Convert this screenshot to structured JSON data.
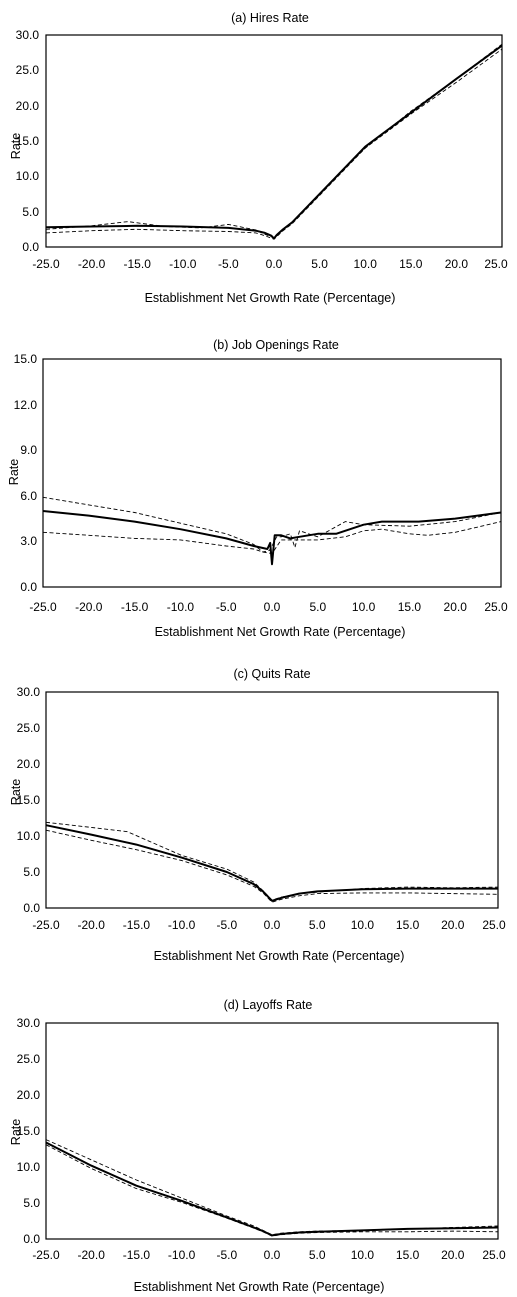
{
  "chart_data": [
    {
      "type": "line",
      "title": "(a) Hires Rate",
      "xlabel": "Establishment Net Growth Rate (Percentage)",
      "ylabel": "Rate",
      "xlim": [
        -25,
        25
      ],
      "ylim": [
        0,
        30
      ],
      "xticks": [
        "-25.0",
        "-20.0",
        "-15.0",
        "-10.0",
        "-5.0",
        "0.0",
        "5.0",
        "10.0",
        "15.0",
        "20.0",
        "25.0"
      ],
      "yticks": [
        "0.0",
        "5.0",
        "10.0",
        "15.0",
        "20.0",
        "25.0",
        "30.0"
      ],
      "series": [
        {
          "style": "solid",
          "x": [
            -25,
            -20,
            -15,
            -10,
            -5,
            -2,
            -1,
            -0.3,
            0,
            0.3,
            1,
            2,
            5,
            10,
            15,
            20,
            25
          ],
          "y": [
            2.8,
            2.9,
            3.0,
            2.9,
            2.7,
            2.3,
            2.0,
            1.6,
            1.2,
            1.7,
            2.5,
            3.5,
            7.5,
            14.2,
            19.0,
            23.8,
            28.5
          ]
        },
        {
          "style": "dash",
          "x": [
            -25,
            -20,
            -16,
            -12,
            -8,
            -5,
            -2,
            -1,
            0,
            1,
            2,
            5,
            10,
            15,
            20,
            25
          ],
          "y": [
            2.5,
            3.0,
            3.6,
            2.9,
            2.7,
            3.2,
            2.4,
            1.8,
            1.3,
            2.4,
            3.5,
            7.5,
            14.0,
            18.8,
            23.3,
            28.0
          ]
        },
        {
          "style": "dash",
          "x": [
            -25,
            -20,
            -15,
            -10,
            -5,
            -2,
            -1,
            0,
            1,
            2,
            5,
            10,
            15,
            20,
            25
          ],
          "y": [
            2.0,
            2.3,
            2.5,
            2.3,
            2.2,
            2.0,
            1.6,
            1.1,
            2.3,
            3.3,
            7.3,
            14.0,
            19.2,
            23.8,
            28.7
          ]
        }
      ]
    },
    {
      "type": "line",
      "title": "(b) Job Openings Rate",
      "xlabel": "Establishment Net Growth Rate (Percentage)",
      "ylabel": "Rate",
      "xlim": [
        -25,
        25
      ],
      "ylim": [
        0,
        15
      ],
      "xticks": [
        "-25.0",
        "-20.0",
        "-15.0",
        "-10.0",
        "-5.0",
        "0.0",
        "5.0",
        "10.0",
        "15.0",
        "20.0",
        "25.0"
      ],
      "yticks": [
        "0.0",
        "3.0",
        "6.0",
        "9.0",
        "12.0",
        "15.0"
      ],
      "series": [
        {
          "style": "solid",
          "x": [
            -25,
            -20,
            -15,
            -10,
            -5,
            -2,
            -0.5,
            -0.2,
            0,
            0.3,
            1,
            2,
            3,
            5,
            7,
            10,
            12,
            16,
            20,
            25
          ],
          "y": [
            5.0,
            4.7,
            4.3,
            3.8,
            3.2,
            2.7,
            2.5,
            2.9,
            1.5,
            3.4,
            3.4,
            3.2,
            3.3,
            3.5,
            3.5,
            4.1,
            4.3,
            4.3,
            4.5,
            4.9
          ]
        },
        {
          "style": "dash",
          "x": [
            -25,
            -20,
            -15,
            -10,
            -5,
            -2,
            -1,
            -0.3,
            0,
            0.5,
            1,
            2,
            2.5,
            3,
            5,
            8,
            10,
            15,
            20,
            25
          ],
          "y": [
            5.9,
            5.4,
            4.9,
            4.2,
            3.5,
            2.8,
            2.3,
            2.4,
            2.7,
            3.3,
            3.3,
            3.5,
            2.6,
            3.7,
            3.3,
            4.3,
            4.1,
            4.0,
            4.3,
            4.9
          ]
        },
        {
          "style": "dash",
          "x": [
            -25,
            -20,
            -15,
            -10,
            -5,
            -2,
            -1,
            0,
            1,
            3,
            5,
            8,
            10,
            12,
            15,
            17,
            20,
            25
          ],
          "y": [
            3.6,
            3.4,
            3.2,
            3.1,
            2.7,
            2.5,
            2.3,
            2.2,
            3.1,
            3.1,
            3.1,
            3.3,
            3.7,
            3.8,
            3.5,
            3.4,
            3.6,
            4.3
          ]
        }
      ]
    },
    {
      "type": "line",
      "title": "(c) Quits Rate",
      "xlabel": "Establishment Net Growth Rate (Percentage)",
      "ylabel": "Rate",
      "xlim": [
        -25,
        25
      ],
      "ylim": [
        0,
        30
      ],
      "xticks": [
        "-25.0",
        "-20.0",
        "-15.0",
        "-10.0",
        "-5.0",
        "0.0",
        "5.0",
        "10.0",
        "15.0",
        "20.0",
        "25.0"
      ],
      "yticks": [
        "0.0",
        "5.0",
        "10.0",
        "15.0",
        "20.0",
        "25.0",
        "30.0"
      ],
      "series": [
        {
          "style": "solid",
          "x": [
            -25,
            -20,
            -15,
            -10,
            -5,
            -2,
            -1,
            0,
            1,
            3,
            5,
            10,
            15,
            20,
            25
          ],
          "y": [
            11.5,
            10.2,
            8.8,
            7.0,
            5.0,
            3.3,
            2.3,
            1.0,
            1.4,
            2.0,
            2.3,
            2.6,
            2.7,
            2.7,
            2.7
          ]
        },
        {
          "style": "dash",
          "x": [
            -25,
            -20,
            -16,
            -10,
            -5,
            -2,
            -1,
            0,
            1,
            3,
            5,
            10,
            15,
            20,
            25
          ],
          "y": [
            11.9,
            11.2,
            10.6,
            7.3,
            5.4,
            3.6,
            2.4,
            1.1,
            1.5,
            2.0,
            2.2,
            2.7,
            2.9,
            2.8,
            2.9
          ]
        },
        {
          "style": "dash",
          "x": [
            -25,
            -20,
            -15,
            -10,
            -5,
            -2,
            -1,
            0,
            1,
            3,
            5,
            10,
            15,
            20,
            25
          ],
          "y": [
            10.8,
            9.4,
            8.1,
            6.6,
            4.6,
            3.0,
            2.1,
            0.8,
            1.2,
            1.7,
            2.0,
            2.1,
            2.1,
            2.0,
            1.9
          ]
        }
      ]
    },
    {
      "type": "line",
      "title": "(d) Layoffs Rate",
      "xlabel": "Establishment Net Growth Rate (Percentage)",
      "ylabel": "Rate",
      "xlim": [
        -25,
        25
      ],
      "ylim": [
        0,
        30
      ],
      "xticks": [
        "-25.0",
        "-20.0",
        "-15.0",
        "-10.0",
        "-5.0",
        "0.0",
        "5.0",
        "10.0",
        "15.0",
        "20.0",
        "25.0"
      ],
      "yticks": [
        "0.0",
        "5.0",
        "10.0",
        "15.0",
        "20.0",
        "25.0",
        "30.0"
      ],
      "series": [
        {
          "style": "solid",
          "x": [
            -25,
            -20,
            -15,
            -10,
            -5,
            -2,
            -1,
            0,
            1,
            3,
            5,
            10,
            15,
            20,
            25
          ],
          "y": [
            13.4,
            10.2,
            7.4,
            5.3,
            3.0,
            1.6,
            1.1,
            0.5,
            0.7,
            0.9,
            1.0,
            1.2,
            1.4,
            1.5,
            1.6
          ]
        },
        {
          "style": "dash",
          "x": [
            -25,
            -20,
            -15,
            -10,
            -5,
            -2,
            -1,
            0,
            1,
            3,
            5,
            10,
            15,
            20,
            25
          ],
          "y": [
            13.8,
            11.0,
            8.2,
            5.7,
            3.2,
            1.8,
            1.2,
            0.6,
            0.8,
            1.0,
            1.1,
            1.2,
            1.4,
            1.6,
            1.8
          ]
        },
        {
          "style": "dash",
          "x": [
            -25,
            -20,
            -15,
            -10,
            -5,
            -2,
            -1,
            0,
            1,
            3,
            5,
            10,
            15,
            20,
            25
          ],
          "y": [
            13.1,
            9.8,
            7.0,
            5.1,
            2.9,
            1.5,
            1.0,
            0.4,
            0.6,
            0.8,
            0.9,
            1.0,
            1.0,
            1.1,
            1.0
          ]
        }
      ]
    }
  ]
}
